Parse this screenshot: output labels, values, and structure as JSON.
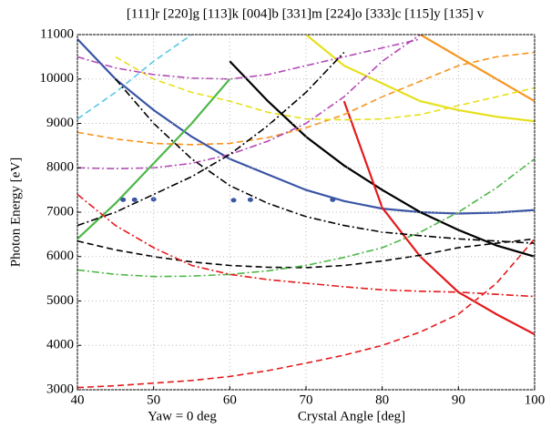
{
  "chart_data": {
    "type": "line",
    "title": "[111]r [220]g [113]k [004]b [331]m [224]o [333]c [115]y [135] v",
    "x_label": "Crystal Angle [deg]",
    "y_label": "Photon Energy [eV]",
    "annotation": "Yaw = 0 deg",
    "x": [
      40,
      45,
      50,
      55,
      60,
      65,
      70,
      75,
      80,
      85,
      90,
      95,
      100
    ],
    "xlim": [
      40,
      100
    ],
    "ylim": [
      3000,
      11000
    ],
    "xticks": [
      40,
      50,
      60,
      70,
      80,
      90,
      100
    ],
    "yticks": [
      3000,
      4000,
      5000,
      6000,
      7000,
      8000,
      9000,
      10000,
      11000
    ],
    "grid": true,
    "series": [
      {
        "color": "#3a55a4",
        "dash": "solid",
        "values": [
          10900,
          10000,
          9300,
          8700,
          8200,
          7850,
          7500,
          7250,
          7080,
          7000,
          6970,
          6990,
          7050
        ]
      },
      {
        "color": "#4db748",
        "dash": "solid",
        "values": [
          6400,
          7200,
          8100,
          9000,
          10000,
          null,
          null,
          null,
          null,
          null,
          null,
          null,
          null
        ]
      },
      {
        "color": "#000000",
        "dash": "solid",
        "values": [
          null,
          null,
          null,
          null,
          10400,
          9500,
          8700,
          8050,
          7500,
          7000,
          6600,
          6250,
          6000
        ]
      },
      {
        "color": "#e41a1c",
        "dash": "solid",
        "values": [
          null,
          null,
          null,
          null,
          null,
          null,
          null,
          9500,
          7100,
          6000,
          5200,
          4700,
          4250
        ]
      },
      {
        "color": "#e6e01a",
        "dash": "solid",
        "values": [
          null,
          null,
          null,
          null,
          null,
          null,
          11000,
          10300,
          9900,
          9500,
          9300,
          9150,
          9050
        ]
      },
      {
        "color": "#f7941d",
        "dash": "solid",
        "values": [
          null,
          null,
          null,
          null,
          null,
          null,
          null,
          null,
          null,
          11000,
          10500,
          10000,
          9500
        ]
      },
      {
        "color": "#e41a1c",
        "dash": "dash",
        "values": [
          3050,
          3090,
          3150,
          3210,
          3300,
          3430,
          3600,
          3780,
          4000,
          4300,
          4700,
          5400,
          6400
        ]
      },
      {
        "color": "#000000",
        "dash": "dash",
        "values": [
          6350,
          6150,
          6000,
          5880,
          5800,
          5760,
          5750,
          5800,
          5900,
          6030,
          6200,
          6300,
          6400
        ]
      },
      {
        "color": "#f7941d",
        "dash": "dash",
        "values": [
          8800,
          8650,
          8550,
          8520,
          8550,
          8680,
          8900,
          9200,
          9600,
          9950,
          10300,
          10500,
          10600
        ]
      },
      {
        "color": "#5bc8e0",
        "dash": "dash",
        "values": [
          9100,
          9700,
          10400,
          11000,
          null,
          null,
          null,
          null,
          null,
          null,
          null,
          null,
          null
        ]
      },
      {
        "color": "#e6e01a",
        "dash": "dash",
        "values": [
          null,
          10500,
          10000,
          9700,
          9500,
          9250,
          9100,
          9080,
          9100,
          9200,
          9400,
          9600,
          9800
        ]
      },
      {
        "color": "#b44ab4",
        "dash": "dashdot",
        "values": [
          8000,
          7980,
          8000,
          8100,
          8300,
          8600,
          9000,
          9600,
          10400,
          11000,
          null,
          null,
          null
        ]
      },
      {
        "color": "#b44ab4",
        "dash": "dashdot",
        "values": [
          10500,
          10250,
          10100,
          10020,
          10000,
          10100,
          10300,
          10500,
          10700,
          10900,
          null,
          null,
          null
        ]
      },
      {
        "color": "#4db748",
        "dash": "dashdot",
        "values": [
          5700,
          5600,
          5550,
          5560,
          5600,
          5680,
          5800,
          5980,
          6200,
          6550,
          7000,
          7550,
          8200
        ]
      },
      {
        "color": "#e41a1c",
        "dash": "dashdot",
        "values": [
          7400,
          6700,
          6200,
          5800,
          5600,
          5480,
          5400,
          5320,
          5250,
          5220,
          5200,
          5150,
          5100
        ]
      },
      {
        "color": "#000000",
        "dash": "dashdot",
        "values": [
          6700,
          7000,
          7400,
          7800,
          8300,
          8950,
          9700,
          10600,
          null,
          null,
          null,
          null,
          null
        ]
      },
      {
        "color": "#000000",
        "dash": "dashdot",
        "values": [
          null,
          10000,
          9000,
          8200,
          7600,
          7200,
          6900,
          6700,
          6550,
          6470,
          6400,
          6350,
          6300
        ]
      },
      {
        "color": "#3a55a4",
        "dash": "marker",
        "x": [
          46,
          47.5,
          50,
          60.5,
          62.7,
          73.5
        ],
        "values": [
          7280,
          7280,
          7290,
          7270,
          7280,
          7280
        ]
      }
    ]
  }
}
